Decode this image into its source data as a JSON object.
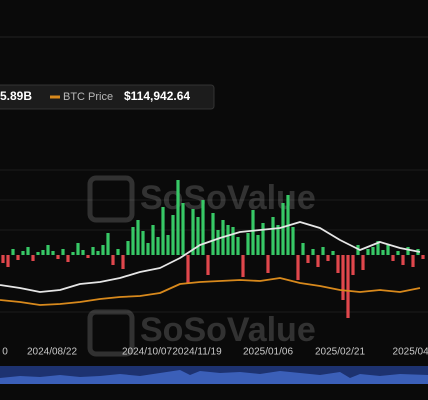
{
  "chart_data": {
    "type": "bar",
    "watermark": "SoSoValue",
    "xlim": [
      0,
      428
    ],
    "ylim": [
      -150,
      150
    ],
    "xticks": [
      {
        "value": 5,
        "label": "0"
      },
      {
        "value": 52,
        "label": "2024/08/22"
      },
      {
        "value": 147,
        "label": "2024/10/07"
      },
      {
        "value": 197,
        "label": "2024/11/19"
      },
      {
        "value": 268,
        "label": "2025/01/06"
      },
      {
        "value": 340,
        "label": "2025/02/21"
      },
      {
        "value": 412,
        "label": "2025/04/"
      }
    ],
    "series": [
      {
        "type": "bar",
        "color_up": "#37c866",
        "color_down": "#e0474c",
        "x": [
          3,
          8,
          13,
          18,
          23,
          28,
          33,
          38,
          43,
          48,
          53,
          58,
          63,
          68,
          73,
          78,
          83,
          88,
          93,
          98,
          103,
          108,
          113,
          118,
          123,
          128,
          133,
          138,
          143,
          148,
          153,
          158,
          163,
          168,
          173,
          178,
          183,
          188,
          193,
          198,
          203,
          208,
          213,
          218,
          223,
          228,
          233,
          238,
          243,
          248,
          253,
          258,
          263,
          268,
          273,
          278,
          283,
          288,
          293,
          298,
          303,
          308,
          313,
          318,
          323,
          328,
          333,
          338,
          343,
          348,
          353,
          358,
          363,
          368,
          373,
          378,
          383,
          388,
          393,
          398,
          403,
          408,
          413,
          418,
          423
        ],
        "values": [
          -8,
          -12,
          6,
          -5,
          4,
          8,
          -6,
          3,
          5,
          10,
          4,
          -4,
          6,
          -7,
          3,
          12,
          5,
          -3,
          8,
          4,
          10,
          22,
          -10,
          6,
          -14,
          14,
          28,
          35,
          24,
          12,
          30,
          18,
          48,
          20,
          40,
          75,
          52,
          -28,
          46,
          38,
          55,
          -20,
          42,
          25,
          35,
          30,
          28,
          18,
          -22,
          22,
          45,
          20,
          32,
          -18,
          38,
          30,
          52,
          60,
          28,
          -25,
          12,
          -8,
          6,
          -12,
          8,
          -6,
          4,
          -18,
          -45,
          -63,
          -20,
          10,
          -15,
          6,
          8,
          14,
          5,
          10,
          -6,
          4,
          -10,
          8,
          -12,
          6,
          -4
        ]
      },
      {
        "type": "line",
        "color": "#e6e6e6",
        "legend_value": "5.89B",
        "x": [
          0,
          20,
          40,
          60,
          80,
          100,
          120,
          140,
          160,
          180,
          200,
          220,
          240,
          260,
          280,
          300,
          320,
          340,
          360,
          380,
          400,
          420
        ],
        "values": [
          -30,
          -33,
          -37,
          -35,
          -29,
          -27,
          -23,
          -17,
          -13,
          -3,
          10,
          17,
          23,
          25,
          27,
          33,
          27,
          15,
          5,
          13,
          7,
          3
        ]
      },
      {
        "type": "line",
        "name": "BTC Price",
        "color": "#d8891c",
        "legend_value": "$114,942.64",
        "x": [
          0,
          20,
          40,
          60,
          80,
          100,
          120,
          140,
          160,
          180,
          200,
          220,
          240,
          260,
          280,
          300,
          320,
          340,
          360,
          380,
          400,
          420
        ],
        "values": [
          -45,
          -47,
          -50,
          -49,
          -47,
          -44,
          -42,
          -41,
          -38,
          -29,
          -27,
          -26,
          -25,
          -26,
          -23,
          -28,
          -31,
          -35,
          -37,
          -35,
          -37,
          -33
        ]
      }
    ]
  }
}
